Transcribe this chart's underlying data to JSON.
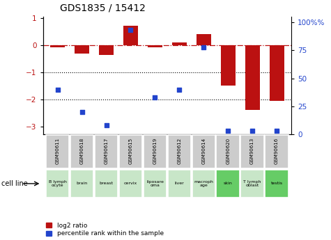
{
  "title": "GDS1835 / 15412",
  "samples": [
    "GSM90611",
    "GSM90618",
    "GSM90617",
    "GSM90615",
    "GSM90619",
    "GSM90612",
    "GSM90614",
    "GSM90620",
    "GSM90613",
    "GSM90616"
  ],
  "cell_lines": [
    "B lymph\nocyte",
    "brain",
    "breast",
    "cervix",
    "liposare\noma",
    "liver",
    "macroph\nage",
    "skin",
    "T lymph\noblast",
    "testis"
  ],
  "cell_line_colors": [
    "#c8e6c8",
    "#c8e6c8",
    "#c8e6c8",
    "#c8e6c8",
    "#c8e6c8",
    "#c8e6c8",
    "#c8e6c8",
    "#66cc66",
    "#c8e6c8",
    "#66cc66"
  ],
  "log2_ratio": [
    -0.08,
    -0.3,
    -0.35,
    0.72,
    -0.08,
    0.1,
    0.4,
    -1.5,
    -2.4,
    -2.05
  ],
  "percentile_rank": [
    40,
    20,
    8,
    93,
    33,
    40,
    78,
    3,
    3,
    3
  ],
  "ylim_left": [
    -3.3,
    1.05
  ],
  "ylim_right": [
    0,
    105
  ],
  "yticks_left": [
    -3,
    -2,
    -1,
    0,
    1
  ],
  "yticks_right": [
    0,
    25,
    50,
    75,
    100
  ],
  "bar_color": "#bb1111",
  "dot_color": "#2244cc",
  "hline_y": 0,
  "dotted_lines": [
    -1,
    -2
  ],
  "legend_red": "log2 ratio",
  "legend_blue": "percentile rank within the sample",
  "cell_line_label": "cell line",
  "background_color": "#ffffff",
  "sample_box_color": "#cccccc",
  "bar_width": 0.6
}
